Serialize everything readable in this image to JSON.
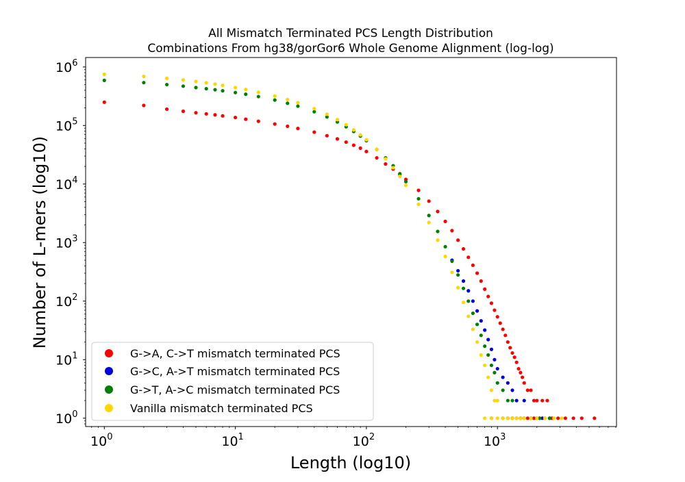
{
  "chart_data": {
    "type": "scatter",
    "title_line1": "All Mismatch Terminated PCS Length Distribution",
    "title_line2": "Combinations From hg38/gorGor6 Whole Genome Alignment (log-log)",
    "xlabel": "Length (log10)",
    "ylabel": "Number of L-mers (log10)",
    "x_scale": "log",
    "y_scale": "log",
    "xlim": [
      0.72,
      8100
    ],
    "ylim": [
      0.72,
      1450000
    ],
    "x_ticks": [
      {
        "base": "10",
        "exp": "0",
        "value": 1
      },
      {
        "base": "10",
        "exp": "1",
        "value": 10
      },
      {
        "base": "10",
        "exp": "2",
        "value": 100
      },
      {
        "base": "10",
        "exp": "3",
        "value": 1000
      }
    ],
    "y_ticks": [
      {
        "base": "10",
        "exp": "0",
        "value": 1
      },
      {
        "base": "10",
        "exp": "1",
        "value": 10
      },
      {
        "base": "10",
        "exp": "2",
        "value": 100
      },
      {
        "base": "10",
        "exp": "3",
        "value": 1000
      },
      {
        "base": "10",
        "exp": "4",
        "value": 10000
      },
      {
        "base": "10",
        "exp": "5",
        "value": 100000
      },
      {
        "base": "10",
        "exp": "6",
        "value": 1000000
      }
    ],
    "grid": false,
    "legend_position": "lower-left",
    "series": [
      {
        "name": "G->A, C->T mismatch terminated PCS",
        "color": "#ff0000",
        "points": [
          [
            1,
            250000
          ],
          [
            2,
            220000
          ],
          [
            3,
            190000
          ],
          [
            4,
            175000
          ],
          [
            5,
            165000
          ],
          [
            6,
            158000
          ],
          [
            7,
            152000
          ],
          [
            8,
            146000
          ],
          [
            10,
            137000
          ],
          [
            12,
            128000
          ],
          [
            15,
            118000
          ],
          [
            20,
            106000
          ],
          [
            25,
            97000
          ],
          [
            30,
            89000
          ],
          [
            40,
            77000
          ],
          [
            50,
            67000
          ],
          [
            60,
            59000
          ],
          [
            70,
            52000
          ],
          [
            80,
            46000
          ],
          [
            90,
            41000
          ],
          [
            100,
            36000
          ],
          [
            120,
            28000
          ],
          [
            140,
            22000
          ],
          [
            160,
            18000
          ],
          [
            180,
            14500
          ],
          [
            200,
            12000
          ],
          [
            250,
            7800
          ],
          [
            300,
            5100
          ],
          [
            350,
            3400
          ],
          [
            400,
            2300
          ],
          [
            450,
            1600
          ],
          [
            500,
            1100
          ],
          [
            550,
            780
          ],
          [
            600,
            560
          ],
          [
            650,
            410
          ],
          [
            700,
            300
          ],
          [
            750,
            220
          ],
          [
            800,
            160
          ],
          [
            850,
            120
          ],
          [
            900,
            92
          ],
          [
            950,
            70
          ],
          [
            1000,
            54
          ],
          [
            1050,
            42
          ],
          [
            1100,
            33
          ],
          [
            1150,
            26
          ],
          [
            1200,
            20
          ],
          [
            1250,
            16
          ],
          [
            1300,
            13
          ],
          [
            1350,
            11
          ],
          [
            1400,
            9
          ],
          [
            1450,
            7
          ],
          [
            1500,
            6
          ],
          [
            1550,
            5
          ],
          [
            1600,
            4
          ],
          [
            1700,
            3
          ],
          [
            1800,
            3
          ],
          [
            1900,
            2
          ],
          [
            2000,
            2
          ],
          [
            2200,
            2
          ],
          [
            2400,
            2
          ],
          [
            1300,
            1
          ],
          [
            1500,
            1
          ],
          [
            1700,
            1
          ],
          [
            1900,
            1
          ],
          [
            2100,
            1
          ],
          [
            2300,
            1
          ],
          [
            2600,
            1
          ],
          [
            2900,
            1
          ],
          [
            3300,
            1
          ],
          [
            3800,
            1
          ],
          [
            4400,
            1
          ],
          [
            5500,
            1
          ]
        ]
      },
      {
        "name": "G->C, A->T mismatch terminated PCS",
        "color": "#0000dd",
        "points": [
          [
            450,
            500
          ],
          [
            500,
            330
          ],
          [
            550,
            220
          ],
          [
            600,
            150
          ],
          [
            650,
            100
          ],
          [
            700,
            68
          ],
          [
            750,
            46
          ],
          [
            800,
            32
          ],
          [
            850,
            22
          ],
          [
            900,
            15
          ],
          [
            950,
            10
          ],
          [
            1000,
            7
          ],
          [
            1100,
            5
          ],
          [
            1200,
            4
          ],
          [
            1300,
            3
          ],
          [
            1400,
            2
          ],
          [
            1600,
            2
          ],
          [
            1200,
            1
          ],
          [
            1400,
            1
          ],
          [
            1600,
            1
          ],
          [
            1800,
            1
          ],
          [
            2000,
            1
          ],
          [
            2200,
            1
          ],
          [
            2500,
            1
          ]
        ]
      },
      {
        "name": "G->T, A->C mismatch terminated PCS",
        "color": "#008000",
        "points": [
          [
            1,
            590000
          ],
          [
            2,
            540000
          ],
          [
            3,
            500000
          ],
          [
            4,
            470000
          ],
          [
            5,
            445000
          ],
          [
            6,
            425000
          ],
          [
            7,
            408000
          ],
          [
            8,
            392000
          ],
          [
            10,
            365000
          ],
          [
            12,
            342000
          ],
          [
            15,
            312000
          ],
          [
            20,
            272000
          ],
          [
            25,
            240000
          ],
          [
            30,
            214000
          ],
          [
            40,
            172000
          ],
          [
            50,
            140000
          ],
          [
            60,
            115000
          ],
          [
            70,
            95000
          ],
          [
            80,
            79000
          ],
          [
            90,
            66000
          ],
          [
            100,
            55000
          ],
          [
            120,
            39000
          ],
          [
            140,
            28000
          ],
          [
            160,
            20500
          ],
          [
            180,
            15000
          ],
          [
            200,
            11000
          ],
          [
            250,
            5600
          ],
          [
            300,
            2900
          ],
          [
            350,
            1550
          ],
          [
            400,
            850
          ],
          [
            450,
            480
          ],
          [
            500,
            280
          ],
          [
            550,
            165
          ],
          [
            600,
            100
          ],
          [
            650,
            62
          ],
          [
            700,
            40
          ],
          [
            750,
            26
          ],
          [
            800,
            17
          ],
          [
            850,
            12
          ],
          [
            900,
            8
          ],
          [
            950,
            6
          ],
          [
            1000,
            4
          ],
          [
            1100,
            3
          ],
          [
            1200,
            2
          ],
          [
            1300,
            2
          ],
          [
            900,
            1
          ],
          [
            1100,
            1
          ],
          [
            1300,
            1
          ],
          [
            1500,
            1
          ],
          [
            1800,
            1
          ],
          [
            2100,
            1
          ],
          [
            2500,
            1
          ]
        ]
      },
      {
        "name": "Vanilla mismatch terminated PCS",
        "color": "#ffd700",
        "points": [
          [
            1,
            750000
          ],
          [
            2,
            690000
          ],
          [
            3,
            640000
          ],
          [
            4,
            600000
          ],
          [
            5,
            565000
          ],
          [
            6,
            535000
          ],
          [
            7,
            510000
          ],
          [
            8,
            485000
          ],
          [
            10,
            445000
          ],
          [
            12,
            412000
          ],
          [
            15,
            370000
          ],
          [
            20,
            318000
          ],
          [
            25,
            278000
          ],
          [
            30,
            245000
          ],
          [
            40,
            194000
          ],
          [
            50,
            156000
          ],
          [
            60,
            126000
          ],
          [
            70,
            103000
          ],
          [
            80,
            84000
          ],
          [
            90,
            69000
          ],
          [
            100,
            57000
          ],
          [
            120,
            39000
          ],
          [
            140,
            27000
          ],
          [
            160,
            19000
          ],
          [
            180,
            13500
          ],
          [
            200,
            9500
          ],
          [
            250,
            4500
          ],
          [
            300,
            2200
          ],
          [
            350,
            1100
          ],
          [
            400,
            580
          ],
          [
            450,
            310
          ],
          [
            500,
            170
          ],
          [
            550,
            95
          ],
          [
            600,
            55
          ],
          [
            650,
            33
          ],
          [
            700,
            20
          ],
          [
            750,
            12
          ],
          [
            800,
            8
          ],
          [
            850,
            5
          ],
          [
            900,
            3
          ],
          [
            950,
            2
          ],
          [
            1000,
            2
          ],
          [
            800,
            1
          ],
          [
            900,
            1
          ],
          [
            1000,
            1
          ],
          [
            1100,
            1
          ],
          [
            1200,
            1
          ],
          [
            1300,
            1
          ],
          [
            1400,
            1
          ],
          [
            1500,
            1
          ],
          [
            1600,
            1
          ],
          [
            1800,
            1
          ],
          [
            2000,
            1
          ],
          [
            2300,
            1
          ],
          [
            2700,
            1
          ],
          [
            3100,
            1
          ]
        ]
      }
    ]
  }
}
